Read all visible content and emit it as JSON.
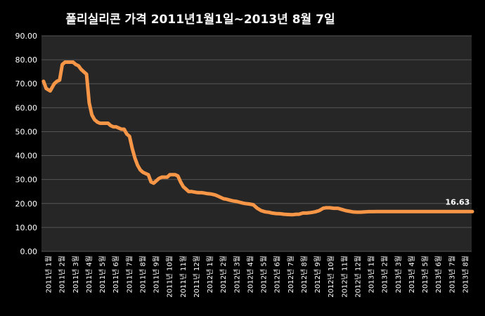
{
  "chart_data": {
    "type": "line",
    "title": "폴리실리콘 가격   2011년1월1일~2013년 8월 7일",
    "ylim": [
      0,
      90
    ],
    "yticks": [
      "0.00",
      "10.00",
      "20.00",
      "30.00",
      "40.00",
      "50.00",
      "60.00",
      "70.00",
      "80.00",
      "90.00"
    ],
    "ytick_values": [
      0,
      10,
      20,
      30,
      40,
      50,
      60,
      70,
      80,
      90
    ],
    "grid": true,
    "legend": "none",
    "colors": {
      "background": "#000000",
      "plot_area": "#262626",
      "line": "#f79646",
      "grid": "#555555",
      "text": "#ffffff"
    },
    "categories": [
      "2011년 1월",
      "2011년 2월",
      "2011년 3월",
      "2011년 4월",
      "2011년 5월",
      "2011년 6월",
      "2011년 7월",
      "2011년 8월",
      "2011년 9월",
      "2011년 10월",
      "2011년 11월",
      "2011년 12월",
      "2012년 1월",
      "2012년 2월",
      "2012년 3월",
      "2012년 4월",
      "2012년 5월",
      "2012년 6월",
      "2012년 7월",
      "2012년 8월",
      "2012년 9월",
      "2012년 10월",
      "2012년 11월",
      "2012년 12월",
      "2013년 1월",
      "2013년 2월",
      "2013년 3월",
      "2013년 4월",
      "2013년 5월",
      "2013년 6월",
      "2013년 7월",
      "2013년 8월"
    ],
    "series": [
      {
        "x": [
          0,
          0.2,
          0.5,
          0.8,
          1.0,
          1.2,
          1.4,
          1.6,
          1.8,
          2.0,
          2.2,
          2.4,
          2.6,
          2.8,
          3.0,
          3.2,
          3.4,
          3.6,
          3.8,
          4.0,
          4.2,
          4.4,
          4.6,
          4.8,
          5.0,
          5.2,
          5.4,
          5.6,
          5.8,
          6.0,
          6.2,
          6.4,
          6.6,
          6.8,
          7.0,
          7.2,
          7.4,
          7.6,
          7.8,
          8.0,
          8.2,
          8.4,
          8.6,
          8.8,
          9.0,
          9.2,
          9.4,
          9.6,
          9.8,
          10.0,
          10.2,
          10.4,
          10.6,
          10.8,
          11.0,
          11.2,
          11.4,
          11.6,
          11.8,
          12.0,
          12.2,
          12.4,
          12.6,
          12.8,
          13.0,
          13.2,
          13.4,
          13.6,
          13.8,
          14.0,
          14.2,
          14.4,
          14.6,
          14.8,
          15.0,
          15.3,
          15.6,
          15.9,
          16.2,
          16.5,
          16.8,
          17.0,
          17.3,
          17.6,
          17.9,
          18.2,
          18.5,
          18.8,
          19.0,
          19.3,
          19.6,
          19.9,
          20.2,
          20.5,
          20.8,
          21.0,
          21.3,
          21.6,
          21.9,
          22.2,
          22.5,
          22.8,
          23.0,
          23.3,
          23.6,
          23.9,
          24.2,
          24.5,
          24.8,
          25.0,
          25.3,
          25.6,
          25.9,
          26.2,
          26.5,
          26.8,
          27.0,
          27.3,
          27.6,
          27.9,
          28.2,
          28.5,
          28.8,
          29.0,
          29.3,
          29.6,
          29.9,
          30.2,
          30.5,
          30.8,
          31.0,
          31.3,
          31.6,
          31.9
        ],
        "values": [
          71,
          68,
          67,
          70,
          71,
          71.5,
          78,
          79,
          79,
          79,
          79,
          78,
          77.5,
          76,
          75,
          74,
          62,
          57,
          55,
          54,
          53.5,
          53.5,
          53.5,
          53.5,
          52.5,
          52,
          52,
          51.5,
          51,
          51,
          49,
          48,
          43,
          39,
          36,
          34,
          33,
          32.5,
          32,
          29,
          28.5,
          29.5,
          30.5,
          31,
          31,
          31,
          32,
          32,
          32,
          31.5,
          29,
          27,
          26,
          25,
          25,
          24.8,
          24.6,
          24.5,
          24.5,
          24.3,
          24.1,
          24,
          23.8,
          23.5,
          23,
          22.5,
          22,
          21.8,
          21.5,
          21.2,
          21,
          20.8,
          20.5,
          20.2,
          20,
          19.8,
          19.5,
          18,
          17,
          16.5,
          16.3,
          16,
          15.8,
          15.7,
          15.5,
          15.4,
          15.3,
          15.5,
          15.5,
          16,
          16,
          16.2,
          16.5,
          17,
          18,
          18.2,
          18.2,
          18,
          18,
          17.5,
          17,
          16.7,
          16.5,
          16.4,
          16.4,
          16.5,
          16.6,
          16.6,
          16.63,
          16.63,
          16.63,
          16.63,
          16.63,
          16.63,
          16.63,
          16.63,
          16.63,
          16.63,
          16.63,
          16.63,
          16.63,
          16.63,
          16.63,
          16.63,
          16.63,
          16.63,
          16.63,
          16.63,
          16.63,
          16.63,
          16.63,
          16.63,
          16.63,
          16.63
        ]
      }
    ],
    "annotations": [
      {
        "text": "16.63",
        "x": 30.8,
        "y": 16.63
      }
    ]
  }
}
